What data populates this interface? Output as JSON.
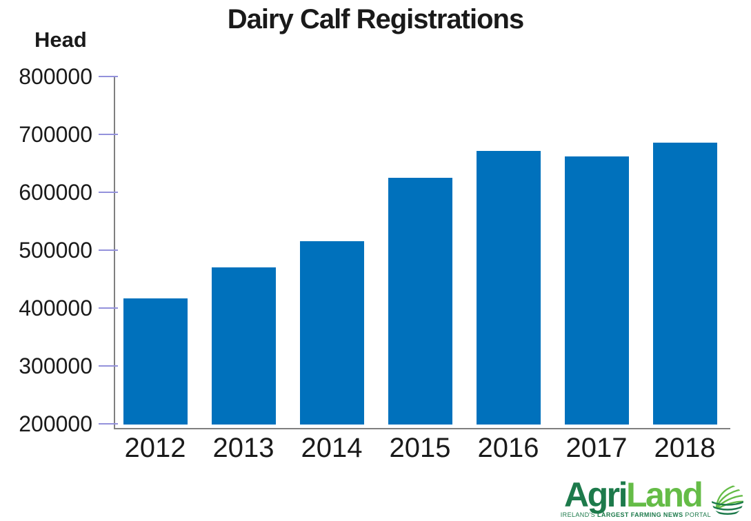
{
  "chart_data": {
    "type": "bar",
    "title": "Dairy Calf Registrations",
    "ylabel": "Head",
    "xlabel": "",
    "categories": [
      "2012",
      "2013",
      "2014",
      "2015",
      "2016",
      "2017",
      "2018"
    ],
    "values": [
      417000,
      470000,
      516000,
      625000,
      672000,
      662000,
      686000
    ],
    "ylim": [
      200000,
      800000
    ],
    "ytick_step": 100000,
    "grid": false,
    "legend": "none",
    "bar_color": "#0071BC"
  },
  "colors": {
    "bar": "#0071BC",
    "axis": "#7F7F7F",
    "tick": "#9391DB",
    "text": "#1A1A1A",
    "brand_dark_green": "#1D7A4B",
    "brand_light_green": "#65BC47"
  },
  "logo": {
    "brand_dark": "Agri",
    "brand_light": "Land",
    "tagline_pre": "IRELAND'S ",
    "tagline_bold": "LARGEST FARMING NEWS",
    "tagline_post": " PORTAL",
    "globe_icon": "globe-of-curved-lines"
  }
}
